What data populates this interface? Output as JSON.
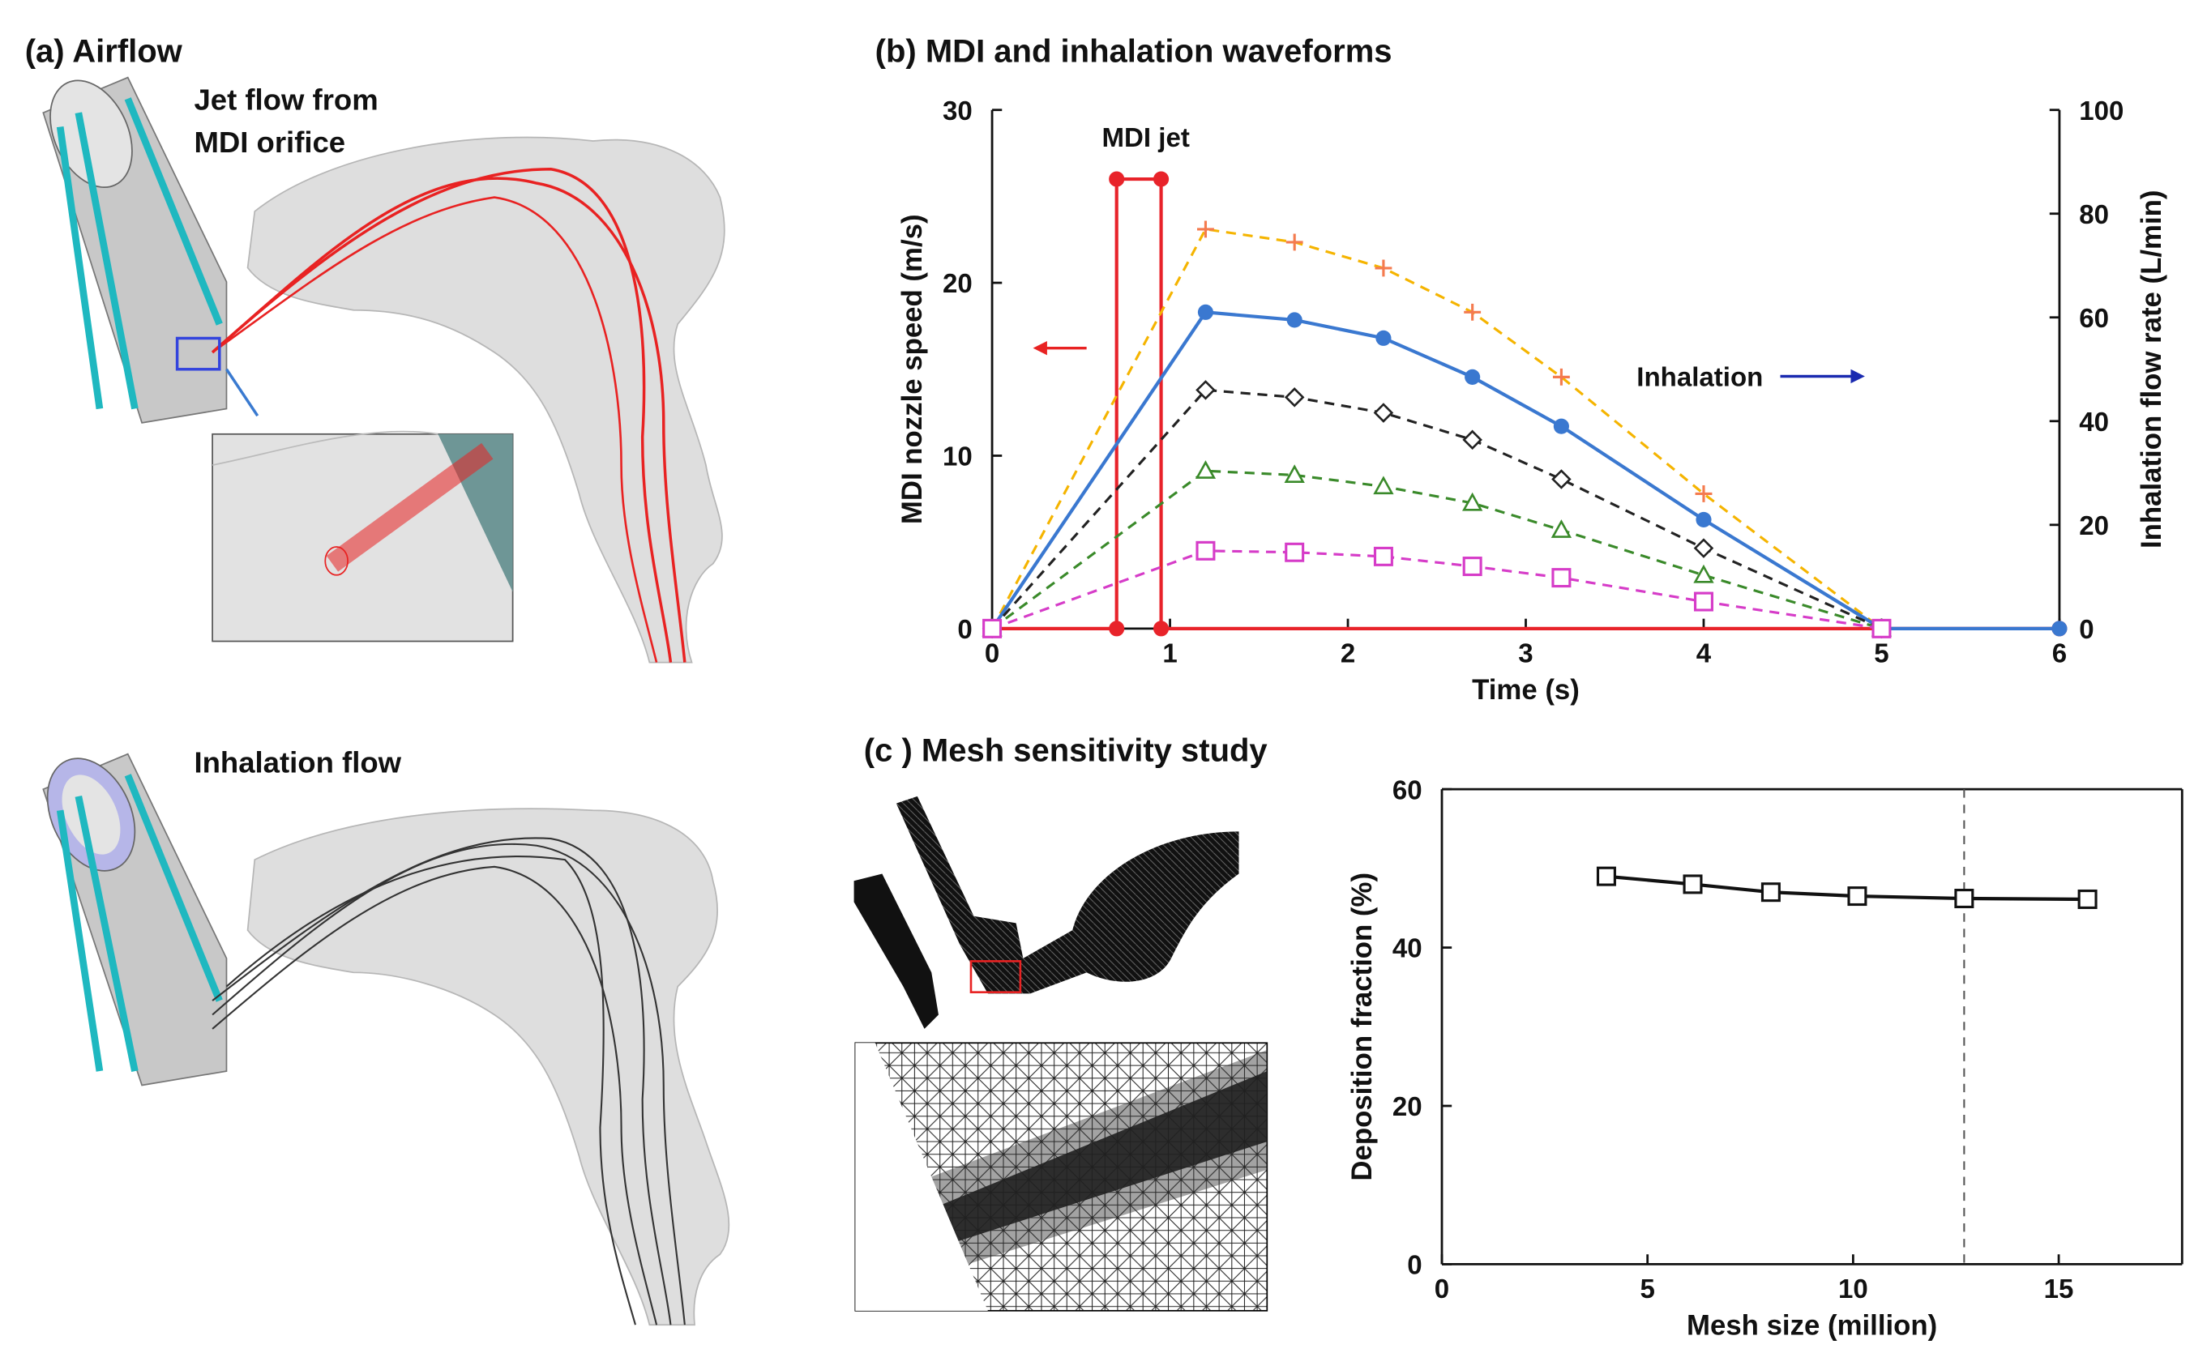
{
  "panels": {
    "a_title": "(a) Airflow",
    "a_jet_label_1": "Jet flow from",
    "a_jet_label_2": "MDI orifice",
    "a_inhalation_label": "Inhalation flow",
    "c_title": "(c ) Mesh sensitivity study"
  },
  "chart_data": [
    {
      "type": "line",
      "title": "(b) MDI and inhalation waveforms",
      "x_label": "Time (s)",
      "y_label": "MDI nozzle speed (m/s)",
      "y2_label": "Inhalation flow rate (L/min)",
      "xlim": [
        0,
        6
      ],
      "xticks": [
        0,
        1,
        2,
        3,
        4,
        5,
        6
      ],
      "ylim": [
        0,
        30
      ],
      "yticks": [
        0,
        10,
        20,
        30
      ],
      "y2lim": [
        0,
        100
      ],
      "y2ticks": [
        0,
        20,
        40,
        60,
        80,
        100
      ],
      "annotations": [
        "MDI jet",
        "Inhalation"
      ],
      "series": [
        {
          "color": "#e8232a",
          "line_style": "solid",
          "marker": "circle",
          "axis": "y",
          "x": [
            0,
            0.7,
            0.7,
            0.95,
            0.95,
            6
          ],
          "values": [
            0,
            0,
            26,
            26,
            0,
            0
          ]
        },
        {
          "color": "#f5b400",
          "marker_color": "#f47b4f",
          "line_style": "dashed",
          "marker": "plus",
          "axis": "y2",
          "x": [
            0,
            1.2,
            1.7,
            2.2,
            2.7,
            3.2,
            4,
            5
          ],
          "values": [
            0,
            77,
            74.5,
            69.5,
            61,
            48.5,
            26,
            0
          ]
        },
        {
          "color": "#3a78d0",
          "line_style": "solid",
          "marker": "circle",
          "axis": "y2",
          "x": [
            0,
            1.2,
            1.7,
            2.2,
            2.7,
            3.2,
            4,
            5,
            6
          ],
          "values": [
            0,
            61,
            59.5,
            56,
            48.5,
            39,
            21,
            0,
            0
          ]
        },
        {
          "color": "#222222",
          "line_style": "dashed",
          "marker": "diamond",
          "axis": "y2",
          "x": [
            0,
            1.2,
            1.7,
            2.2,
            2.7,
            3.2,
            4,
            5
          ],
          "values": [
            0,
            46,
            44.6,
            41.6,
            36.4,
            28.8,
            15.5,
            0
          ]
        },
        {
          "color": "#3a8a2a",
          "line_style": "dashed",
          "marker": "triangle",
          "axis": "y2",
          "x": [
            0,
            1.2,
            1.7,
            2.2,
            2.7,
            3.2,
            4,
            5
          ],
          "values": [
            0,
            30.4,
            29.6,
            27.4,
            24.2,
            19,
            10.3,
            0
          ]
        },
        {
          "color": "#d63cc8",
          "line_style": "dashed",
          "marker": "square",
          "axis": "y2",
          "x": [
            0,
            1.2,
            1.7,
            2.2,
            2.7,
            3.2,
            4,
            5
          ],
          "values": [
            0,
            15,
            14.7,
            13.9,
            12,
            9.8,
            5.2,
            0
          ]
        }
      ]
    },
    {
      "type": "line",
      "x_label": "Mesh size (million)",
      "y_label": "Deposition fraction (%)",
      "xlim": [
        0,
        18
      ],
      "xticks": [
        0,
        5,
        10,
        15
      ],
      "ylim": [
        0,
        60
      ],
      "yticks": [
        0,
        20,
        40,
        60
      ],
      "reference_x": 12.7,
      "frame": true,
      "series": [
        {
          "color": "#111111",
          "line_style": "solid",
          "marker": "square",
          "axis": "y",
          "x": [
            4,
            6.1,
            8,
            10.1,
            12.7,
            15.7
          ],
          "values": [
            49,
            48,
            47,
            46.5,
            46.2,
            46.1
          ]
        }
      ]
    }
  ]
}
